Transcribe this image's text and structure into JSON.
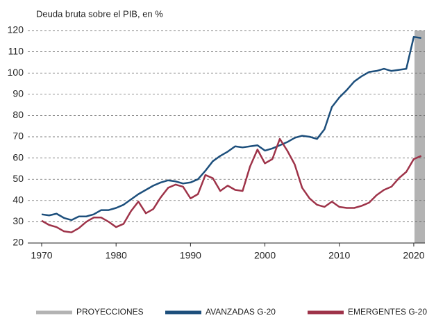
{
  "chart_data": {
    "type": "line",
    "title": "Deuda bruta sobre el PIB, en %",
    "x": [
      1970,
      1971,
      1972,
      1973,
      1974,
      1975,
      1976,
      1977,
      1978,
      1979,
      1980,
      1981,
      1982,
      1983,
      1984,
      1985,
      1986,
      1987,
      1988,
      1989,
      1990,
      1991,
      1992,
      1993,
      1994,
      1995,
      1996,
      1997,
      1998,
      1999,
      2000,
      2001,
      2002,
      2003,
      2004,
      2005,
      2006,
      2007,
      2008,
      2009,
      2010,
      2011,
      2012,
      2013,
      2014,
      2015,
      2016,
      2017,
      2018,
      2019,
      2020,
      2021
    ],
    "series": [
      {
        "name": "AVANZADAS G-20",
        "color": "#1d4f7c",
        "values": [
          33.5,
          33,
          33.8,
          31.8,
          30.8,
          32.5,
          32.5,
          33.5,
          35.5,
          35.5,
          36.5,
          38,
          40.5,
          43,
          45,
          47,
          48.5,
          49.5,
          49,
          48,
          48.5,
          50,
          54,
          58.5,
          61,
          63,
          65.5,
          65,
          65.5,
          66,
          63.5,
          64.5,
          66,
          67.5,
          69.5,
          70.5,
          70,
          69,
          73.5,
          84,
          88.5,
          92,
          96,
          98.5,
          100.5,
          101,
          102,
          101,
          101.5,
          102,
          117,
          116.5
        ]
      },
      {
        "name": "EMERGENTES G-20",
        "color": "#9e3349",
        "values": [
          30.5,
          28.5,
          27.5,
          25.5,
          25,
          27,
          30,
          32,
          32,
          30,
          27.5,
          29,
          35,
          39.5,
          34,
          36,
          41.5,
          46,
          47.5,
          46.5,
          41,
          43,
          52,
          50.5,
          44.5,
          47,
          45,
          44.5,
          56,
          64,
          57.5,
          59.5,
          69,
          63.5,
          57,
          46,
          41,
          38,
          37,
          39.5,
          37,
          36.5,
          36.5,
          37.5,
          39,
          42.5,
          45,
          46.5,
          50.5,
          53.5,
          59.5,
          61
        ]
      }
    ],
    "shaded_region": {
      "name": "PROYECCIONES",
      "color": "#b3b3b3",
      "x": [
        2020.1,
        2021.5
      ]
    },
    "xlim": [
      1970,
      2021.5
    ],
    "xticks": [
      1970,
      1980,
      1990,
      2000,
      2010,
      2020
    ],
    "ylim": [
      20,
      120
    ],
    "yticks": [
      20,
      30,
      40,
      50,
      60,
      70,
      80,
      90,
      100,
      110,
      120
    ],
    "grid": true
  }
}
